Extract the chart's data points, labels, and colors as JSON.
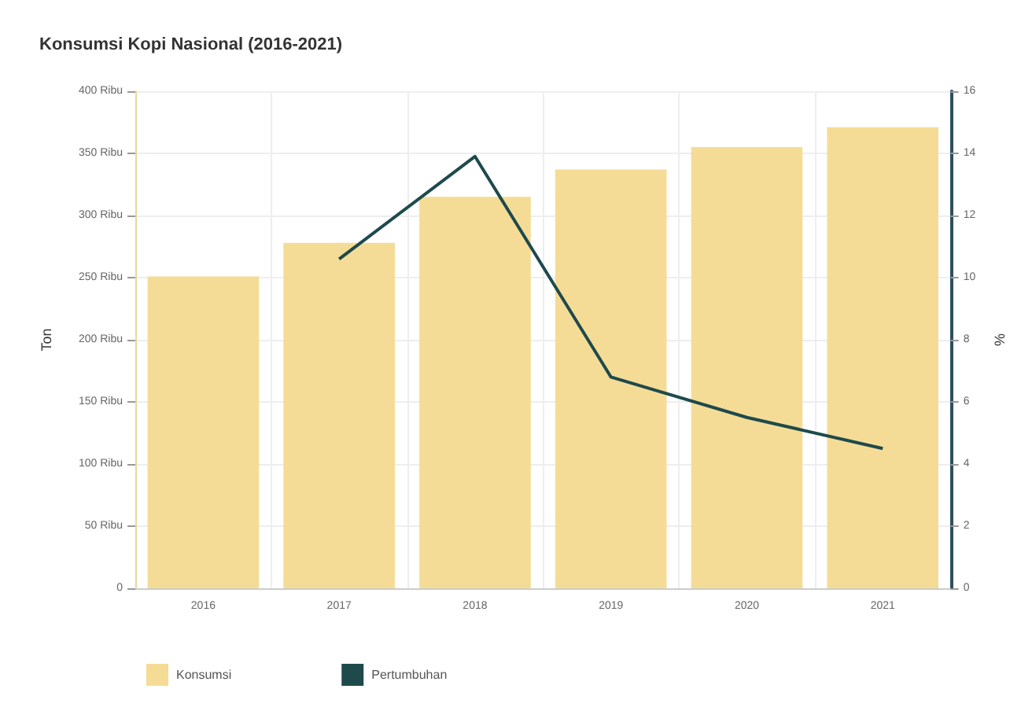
{
  "chart_data": {
    "type": "bar",
    "title": "Konsumsi Kopi Nasional (2016-2021)",
    "ylabel": "Ton",
    "y2label": "%",
    "categories": [
      "2016",
      "2017",
      "2018",
      "2019",
      "2020",
      "2021"
    ],
    "series": [
      {
        "name": "Konsumsi",
        "color": "#f5dc96",
        "values": [
          251,
          278,
          315,
          337,
          355,
          371
        ]
      },
      {
        "name": "Pertumbuhan",
        "type": "line",
        "axis": "y2",
        "color": "#1e4a4c",
        "values": [
          null,
          10.6,
          13.9,
          6.8,
          5.5,
          4.5
        ]
      }
    ],
    "ylim": [
      0,
      400
    ],
    "yticks": [
      0,
      {
        "value": 50,
        "label": "50 Ribu"
      },
      {
        "value": 100,
        "label": "100 Ribu"
      },
      {
        "value": 150,
        "label": "150 Ribu"
      },
      {
        "value": 200,
        "label": "200 Ribu"
      },
      {
        "value": 250,
        "label": "250 Ribu"
      },
      {
        "value": 300,
        "label": "300 Ribu"
      },
      {
        "value": 350,
        "label": "350 Ribu"
      },
      {
        "value": 400,
        "label": "400 Ribu"
      }
    ],
    "y2lim": [
      0,
      16
    ],
    "y2ticks": [
      0,
      2,
      4,
      6,
      8,
      10,
      12,
      14,
      16
    ],
    "grid": true,
    "legend": "bottom left",
    "marker": "none",
    "line_style": "solid"
  }
}
